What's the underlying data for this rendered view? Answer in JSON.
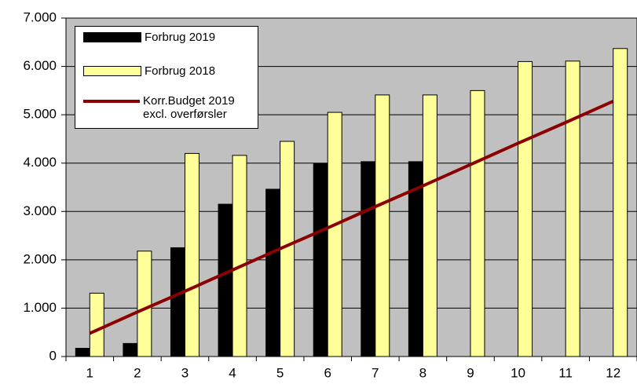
{
  "chart_data": {
    "type": "bar",
    "categories": [
      "1",
      "2",
      "3",
      "4",
      "5",
      "6",
      "7",
      "8",
      "9",
      "10",
      "11",
      "12"
    ],
    "series": [
      {
        "name": "Forbrug 2019",
        "color": "#000000",
        "values": [
          170,
          270,
          2250,
          3150,
          3460,
          3990,
          4030,
          4030,
          null,
          null,
          null,
          null
        ]
      },
      {
        "name": "Forbrug 2018",
        "color": "#ffff99",
        "values": [
          1310,
          2180,
          4200,
          4160,
          4450,
          5050,
          5410,
          5410,
          5500,
          6100,
          6110,
          6370
        ]
      },
      {
        "name": "Korr.Budget 2019\nexcl. overførsler",
        "color": "#8b0000",
        "type": "line",
        "values": [
          480,
          920,
          1350,
          1790,
          2230,
          2660,
          3100,
          3530,
          3970,
          4410,
          4840,
          5280
        ]
      }
    ],
    "ylim": [
      0,
      7000
    ],
    "yticks": [
      0,
      {
        "value": 1000,
        "label": "1.000"
      },
      {
        "value": 2000,
        "label": "2.000"
      },
      {
        "value": 3000,
        "label": "3.000"
      },
      {
        "value": 4000,
        "label": "4.000"
      },
      {
        "value": 5000,
        "label": "5.000"
      },
      {
        "value": 6000,
        "label": "6.000"
      },
      {
        "value": 7000,
        "label": "7.000"
      }
    ],
    "grid": true,
    "legend": "upper left",
    "background": "#c0c0c0"
  }
}
